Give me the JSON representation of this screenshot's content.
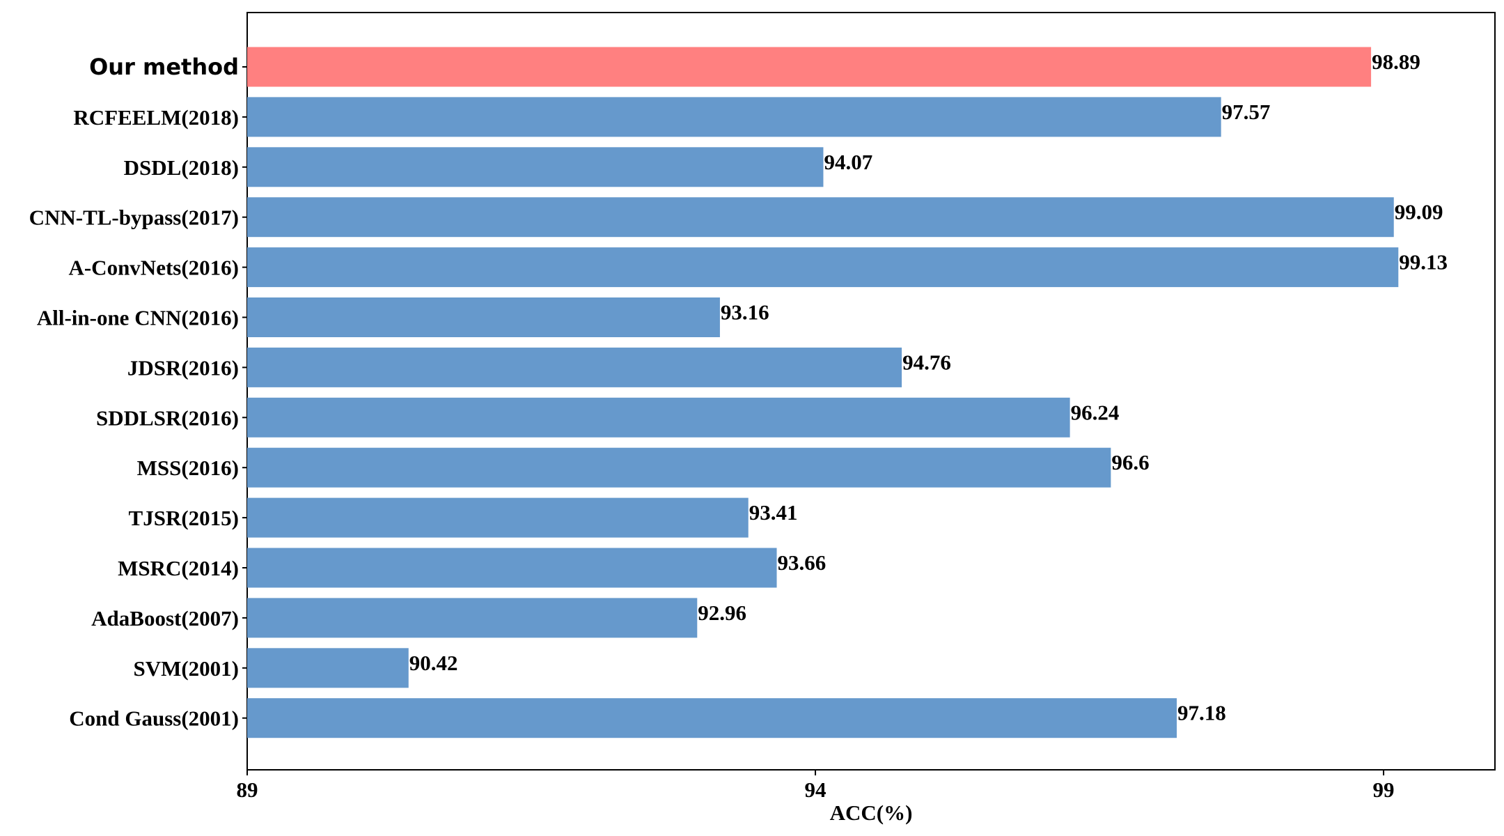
{
  "chart_data": {
    "type": "bar",
    "orientation": "horizontal",
    "xlabel": "ACC(%)",
    "xlim": [
      89,
      99.98
    ],
    "xticks": [
      89,
      94,
      99
    ],
    "grid": false,
    "categories": [
      "Our method",
      "RCFEELM(2018)",
      "DSDL(2018)",
      "CNN-TL-bypass(2017)",
      "A-ConvNets(2016)",
      "All-in-one CNN(2016)",
      "JDSR(2016)",
      "SDDLSR(2016)",
      "MSS(2016)",
      "TJSR(2015)",
      "MSRC(2014)",
      "AdaBoost(2007)",
      "SVM(2001)",
      "Cond Gauss(2001)"
    ],
    "values": [
      98.89,
      97.57,
      94.07,
      99.09,
      99.13,
      93.16,
      94.76,
      96.24,
      96.6,
      93.41,
      93.66,
      92.96,
      90.42,
      97.18
    ],
    "value_labels": [
      "98.89",
      "97.57",
      "94.07",
      "99.09",
      "99.13",
      "93.16",
      "94.76",
      "96.24",
      "96.6",
      "93.41",
      "93.66",
      "92.96",
      "90.42",
      "97.18"
    ],
    "highlight_index": 0,
    "colors": {
      "bar": "#6699cc",
      "highlight": "#ff8080",
      "frame": "#000000",
      "text": "#000000"
    }
  }
}
